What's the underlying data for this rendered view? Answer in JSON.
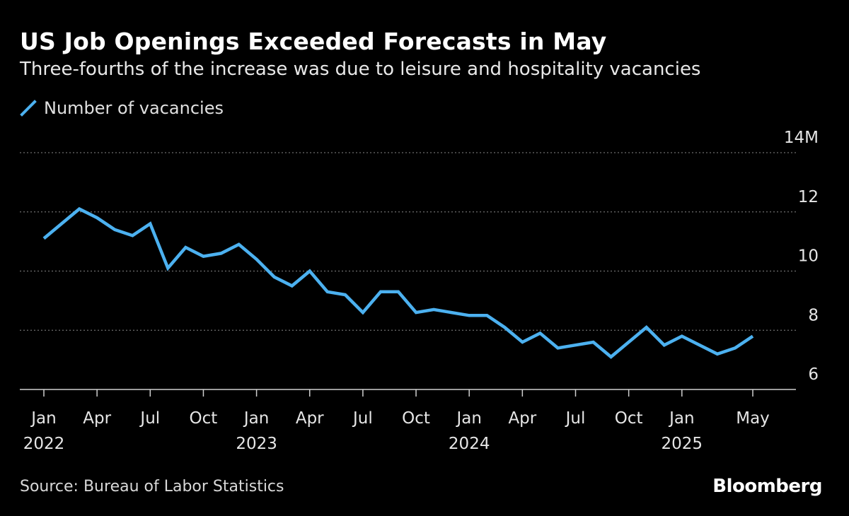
{
  "header": {
    "title": "US Job Openings Exceeded Forecasts in May",
    "subtitle": "Three-fourths of the increase was due to leisure and hospitality vacancies"
  },
  "legend": {
    "label": "Number of vacancies"
  },
  "footer": {
    "source": "Source: Bureau of Labor Statistics",
    "brand": "Bloomberg"
  },
  "colors": {
    "line": "#4cb1f0",
    "grid": "#6e6e6e",
    "axis": "#cfcfcf",
    "background": "#000000"
  },
  "chart_data": {
    "type": "line",
    "title": "US Job Openings Exceeded Forecasts in May",
    "subtitle": "Three-fourths of the increase was due to leisure and hospitality vacancies",
    "xlabel": "",
    "ylabel": "",
    "ylim": [
      6,
      14
    ],
    "y_ticks": [
      {
        "value": 14,
        "label": "14M"
      },
      {
        "value": 12,
        "label": "12"
      },
      {
        "value": 10,
        "label": "10"
      },
      {
        "value": 8,
        "label": "8"
      },
      {
        "value": 6,
        "label": "6"
      }
    ],
    "x_ticks": [
      {
        "index": 0,
        "month": "Jan",
        "year": "2022"
      },
      {
        "index": 3,
        "month": "Apr",
        "year": ""
      },
      {
        "index": 6,
        "month": "Jul",
        "year": ""
      },
      {
        "index": 9,
        "month": "Oct",
        "year": ""
      },
      {
        "index": 12,
        "month": "Jan",
        "year": "2023"
      },
      {
        "index": 15,
        "month": "Apr",
        "year": ""
      },
      {
        "index": 18,
        "month": "Jul",
        "year": ""
      },
      {
        "index": 21,
        "month": "Oct",
        "year": ""
      },
      {
        "index": 24,
        "month": "Jan",
        "year": "2024"
      },
      {
        "index": 27,
        "month": "Apr",
        "year": ""
      },
      {
        "index": 30,
        "month": "Jul",
        "year": ""
      },
      {
        "index": 33,
        "month": "Oct",
        "year": ""
      },
      {
        "index": 36,
        "month": "Jan",
        "year": "2025"
      },
      {
        "index": 40,
        "month": "May",
        "year": ""
      }
    ],
    "grid": true,
    "legend_position": "top-left",
    "series": [
      {
        "name": "Number of vacancies",
        "start": "2022-01",
        "frequency": "monthly",
        "values": [
          11.1,
          11.6,
          12.1,
          11.8,
          11.4,
          11.2,
          11.6,
          10.1,
          10.8,
          10.5,
          10.6,
          10.9,
          10.4,
          9.8,
          9.5,
          10.0,
          9.3,
          9.2,
          8.6,
          9.3,
          9.3,
          8.6,
          8.7,
          8.6,
          8.5,
          8.5,
          8.1,
          7.6,
          7.9,
          7.4,
          7.5,
          7.6,
          7.1,
          7.6,
          8.1,
          7.5,
          7.8,
          7.5,
          7.2,
          7.4,
          7.8
        ]
      }
    ]
  }
}
